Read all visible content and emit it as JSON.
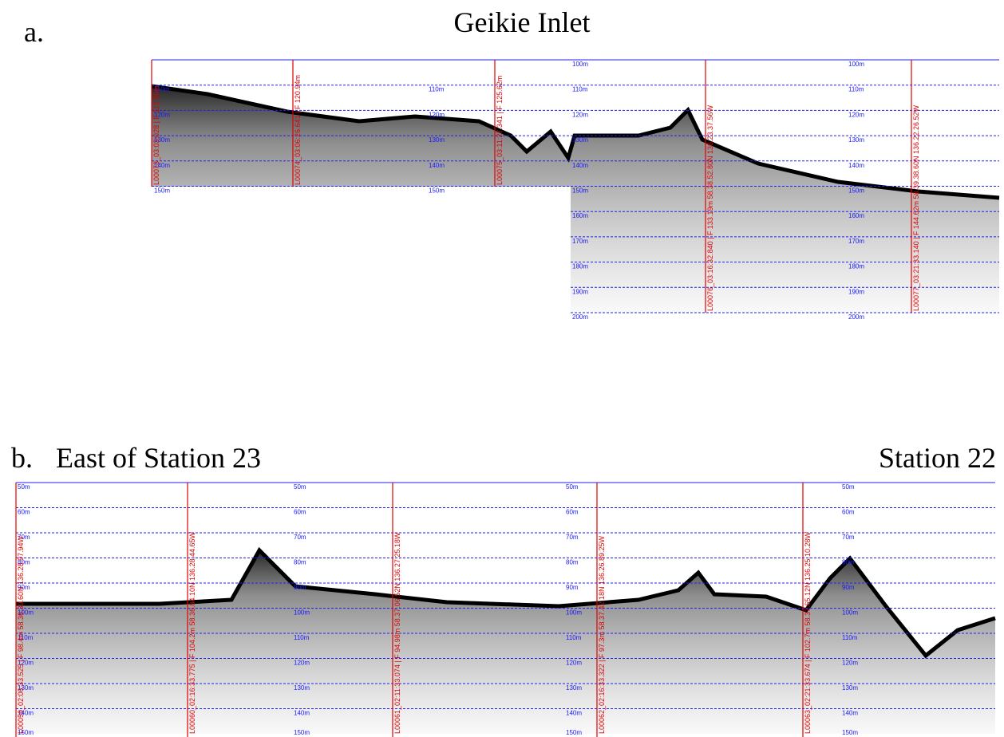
{
  "panel_a": {
    "letter": "a.",
    "title": "Geikie Inlet",
    "depth_labels": [
      "100m",
      "110m",
      "120m",
      "130m",
      "140m",
      "150m",
      "160m",
      "170m",
      "180m",
      "190m",
      "200m"
    ],
    "fix_labels": [
      "L00073_03:03:028 | F 113.59m",
      "L00074_03:06:26.641 | F 120.94m",
      "L00075_03:11:27.341 | F 125.62m",
      "L00076_03:16:32.840 | F 133.19m 58.38.52.80N 136.23.37.56W",
      "L00077_03:21:33.140 | F 144.62m 58.39.38.60N 136.22.26.52W"
    ]
  },
  "panel_b": {
    "letter": "b.",
    "title": "East of Station 23",
    "title_right": "Station 22",
    "depth_labels": [
      "50m",
      "60m",
      "70m",
      "80m",
      "90m",
      "100m",
      "110m",
      "120m",
      "130m",
      "140m",
      "150m"
    ],
    "fix_labels": [
      "L00059_02:06:33.525 | F 98.4m 58.36.39.60N 136.28.97.94W",
      "L00060_02:16:33.775 | F 104.2m 58.36.84.10N 136.28.44.65W",
      "L00061_02:11:33.074 | F 94.98m 58.37.06.52N 136.27.25.18W",
      "L00062_02:16:33.322 | F 97.3m 58.37.42.18N 136.26.89.25W",
      "L00063_02:21:33.674 | F 102.7m 58.37.65.12N 136.25.10.28W"
    ]
  }
}
